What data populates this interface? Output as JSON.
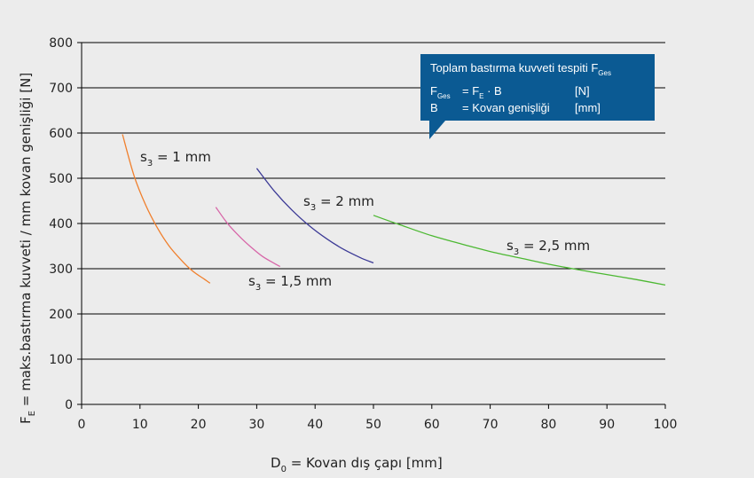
{
  "chart_data": {
    "type": "line",
    "xlabel": "D0 = Kovan dış çapı [mm]",
    "xlabel_parts": {
      "base": "D",
      "sub": "0",
      "rest": " = Kovan dış çapı [mm]"
    },
    "ylabel": "FE = maks.bastırma kuvveti / mm kovan genişliği [N]",
    "ylabel_parts": {
      "base": "F",
      "sub": "E",
      "rest": " = maks.bastırma kuvveti / mm kovan genişliği [N]"
    },
    "xlim": [
      0,
      100
    ],
    "ylim": [
      0,
      800
    ],
    "x_ticks": [
      0,
      10,
      20,
      30,
      40,
      50,
      60,
      70,
      80,
      90,
      100
    ],
    "y_ticks": [
      0,
      100,
      200,
      300,
      400,
      500,
      600,
      700,
      800
    ],
    "grid": "horizontal",
    "series": [
      {
        "name": "s3 = 1 mm",
        "name_base": "s",
        "name_sub": "3",
        "name_rest": " = 1 mm",
        "color": "#f07f2c",
        "x": [
          7,
          9,
          11,
          13,
          15,
          17,
          19,
          21,
          22
        ],
        "y": [
          597,
          505,
          440,
          390,
          350,
          320,
          295,
          277,
          268
        ]
      },
      {
        "name": "s3 = 1,5 mm",
        "name_base": "s",
        "name_sub": "3",
        "name_rest": " = 1,5 mm",
        "color": "#d766a8",
        "x": [
          23,
          25,
          27,
          29,
          31,
          33,
          34
        ],
        "y": [
          436,
          400,
          372,
          348,
          327,
          312,
          305
        ]
      },
      {
        "name": "s3 = 2 mm",
        "name_base": "s",
        "name_sub": "3",
        "name_rest": " = 2 mm",
        "color": "#3c3a96",
        "x": [
          30,
          33,
          36,
          39,
          42,
          45,
          48,
          50
        ],
        "y": [
          522,
          472,
          430,
          395,
          366,
          342,
          323,
          313
        ]
      },
      {
        "name": "s3 = 2,5 mm",
        "name_base": "s",
        "name_sub": "3",
        "name_rest": " = 2,5 mm",
        "color": "#4cb832",
        "x": [
          50,
          55,
          60,
          65,
          70,
          75,
          80,
          85,
          90,
          95,
          100
        ],
        "y": [
          418,
          395,
          373,
          355,
          338,
          324,
          310,
          298,
          287,
          276,
          264
        ]
      }
    ]
  },
  "infobox": {
    "title_base": "Toplam bastırma kuvveti tespiti F",
    "title_sub": "Ges",
    "row1_base": "F",
    "row1_sub": "Ges",
    "row1_eq": "= F",
    "row1_eq_sub": "E",
    "row1_rest": " · B",
    "row1_unit": "[N]",
    "row2_sym": "B",
    "row2_eq": "= Kovan genişliği",
    "row2_unit": "[mm]",
    "bg_color": "#0b5a93"
  }
}
